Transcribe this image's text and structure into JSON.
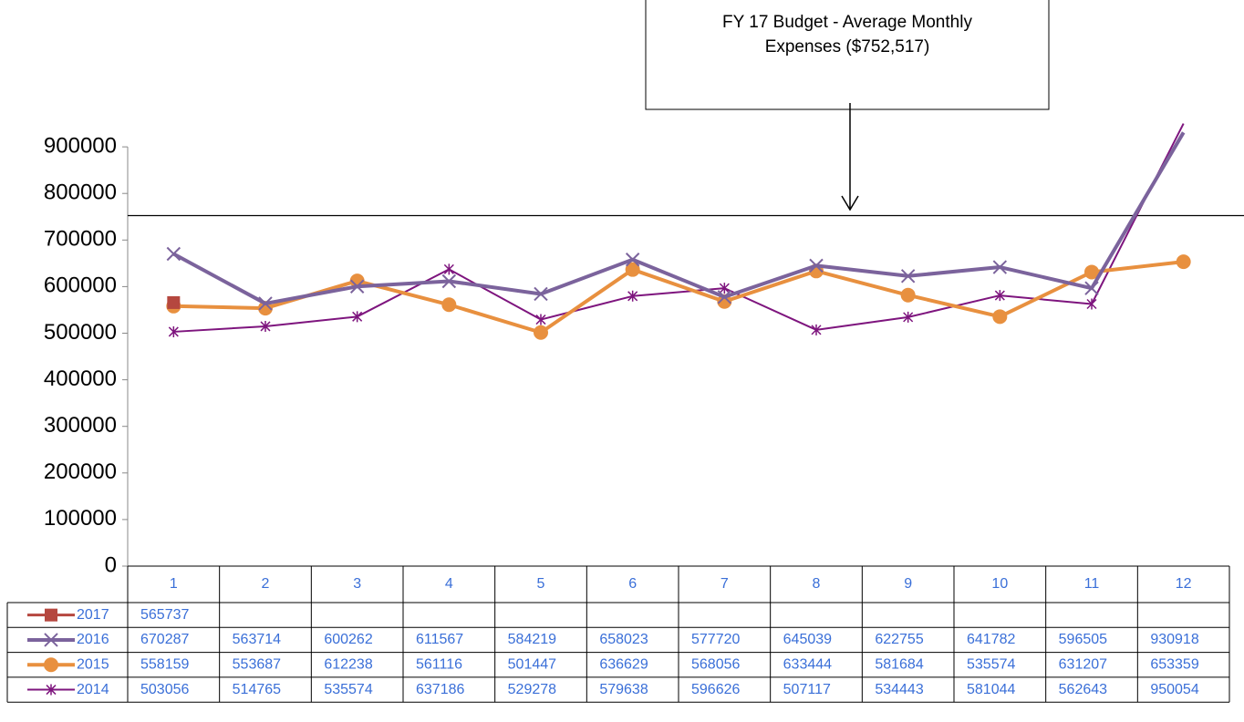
{
  "chart_data": {
    "type": "line",
    "annotation": [
      "FY 17 Budget - Average Monthly",
      "Expenses   ($752,517)"
    ],
    "reference_line": 752517,
    "categories": [
      "1",
      "2",
      "3",
      "4",
      "5",
      "6",
      "7",
      "8",
      "9",
      "10",
      "11",
      "12"
    ],
    "series": [
      {
        "name": "2017",
        "color": "#b5473f",
        "marker": "square",
        "values": [
          565737,
          null,
          null,
          null,
          null,
          null,
          null,
          null,
          null,
          null,
          null,
          null
        ]
      },
      {
        "name": "2016",
        "color": "#7b639c",
        "marker": "x",
        "values": [
          670287,
          563714,
          600262,
          611567,
          584219,
          658023,
          577720,
          645039,
          622755,
          641782,
          596505,
          930918
        ]
      },
      {
        "name": "2015",
        "color": "#e8903f",
        "marker": "circle",
        "values": [
          558159,
          553687,
          612238,
          561116,
          501447,
          636629,
          568056,
          633444,
          581684,
          535574,
          631207,
          653359
        ]
      },
      {
        "name": "2014",
        "color": "#7e157e",
        "marker": "asterisk",
        "values": [
          503056,
          514765,
          535574,
          637186,
          529278,
          579638,
          596626,
          507117,
          534443,
          581044,
          562643,
          950054
        ]
      }
    ],
    "ylim": [
      0,
      1000000
    ],
    "yticks": [
      0,
      100000,
      200000,
      300000,
      400000,
      500000,
      600000,
      700000,
      800000,
      900000
    ],
    "grid": false
  }
}
